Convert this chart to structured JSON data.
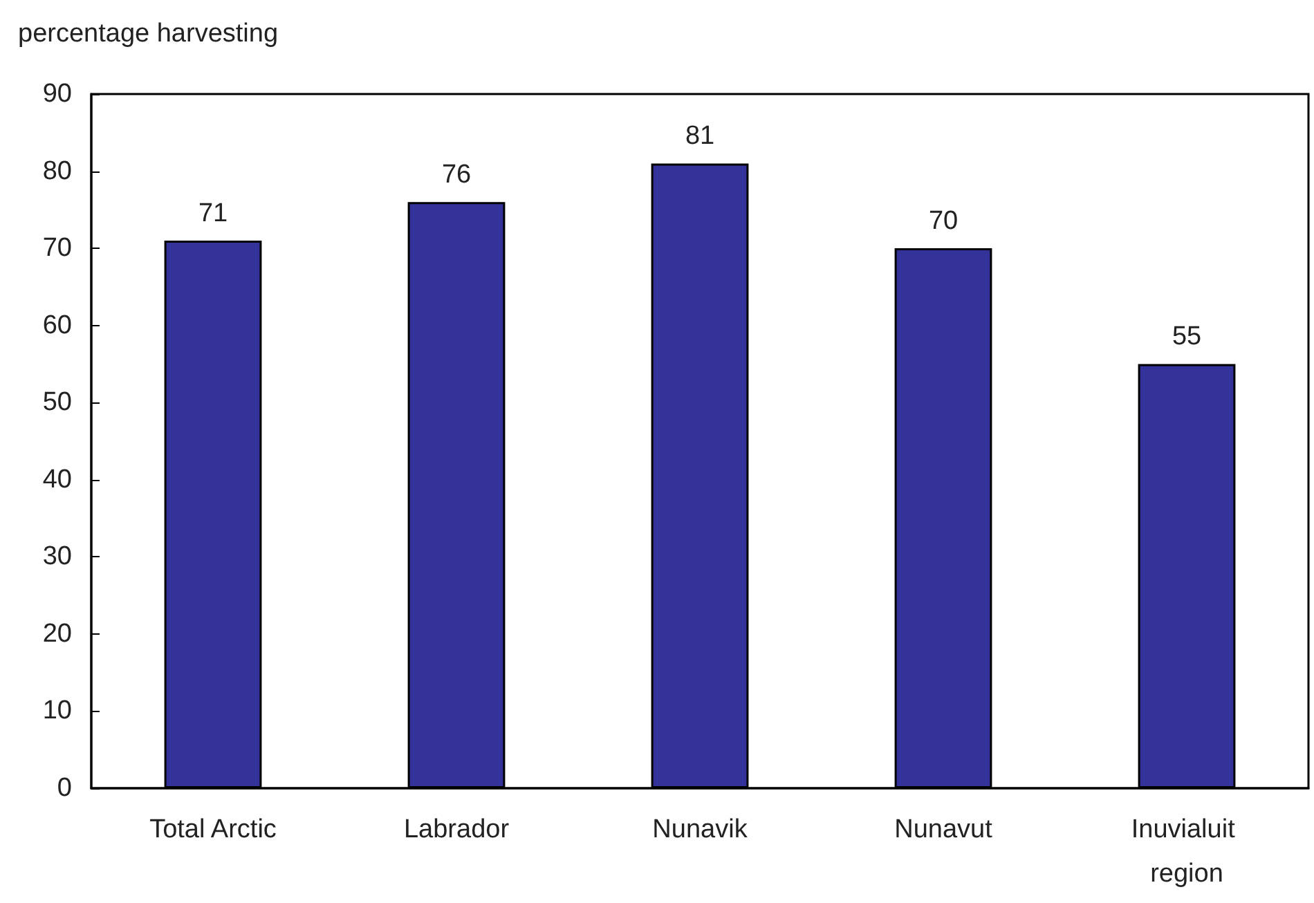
{
  "chart_data": {
    "type": "bar",
    "ylabel": "percentage harvesting",
    "categories": [
      "Total Arctic",
      "Labrador",
      "Nunavik",
      "Nunavut",
      "Inuvialuit region"
    ],
    "values": [
      71,
      76,
      81,
      70,
      55
    ],
    "color": "#333399",
    "ylim": [
      0,
      90
    ],
    "yticks": [
      0,
      10,
      20,
      30,
      40,
      50,
      60,
      70,
      80,
      90
    ],
    "grid": false,
    "data_labels": true
  }
}
